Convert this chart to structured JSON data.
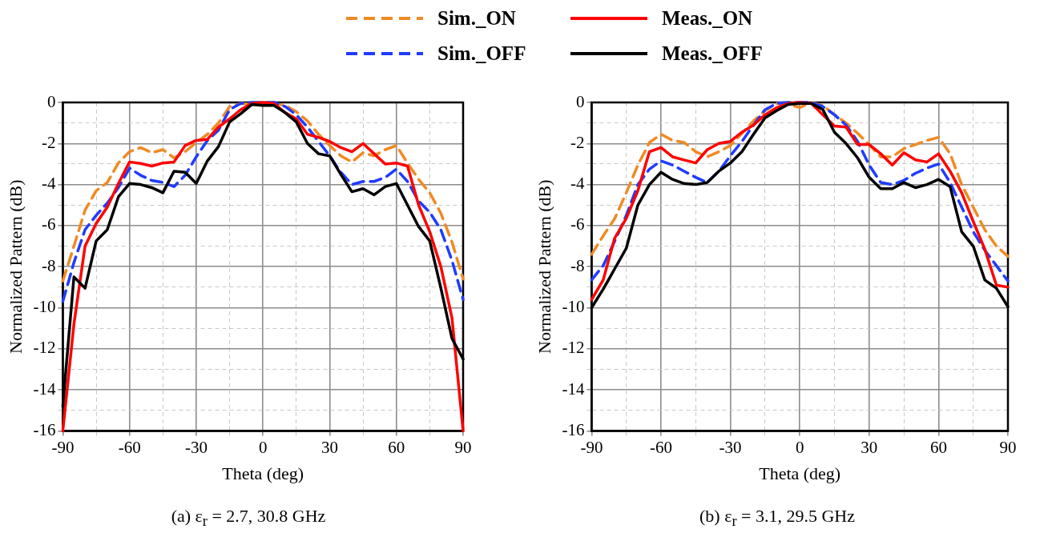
{
  "chart_data": [
    {
      "type": "line",
      "title": "(a) ε$_{r}$ = 2.7, 30.8 GHz",
      "xlabel": "Theta (deg)",
      "ylabel": "Normalized Pattern (dB)",
      "x": [
        -90,
        -85,
        -80,
        -75,
        -70,
        -65,
        -60,
        -55,
        -50,
        -45,
        -40,
        -35,
        -30,
        -25,
        -20,
        -15,
        -10,
        -5,
        0,
        5,
        10,
        15,
        20,
        25,
        30,
        35,
        40,
        45,
        50,
        55,
        60,
        65,
        70,
        75,
        80,
        85,
        90
      ],
      "series": [
        {
          "name": "Sim._ON",
          "color": "#f08a24",
          "line_style": "dashed",
          "values": [
            -8.7,
            -7.0,
            -5.25,
            -4.3,
            -3.9,
            -2.95,
            -2.4,
            -2.2,
            -2.45,
            -2.3,
            -2.7,
            -2.4,
            -1.95,
            -1.55,
            -1.0,
            -0.2,
            -0.05,
            -0.1,
            -0.15,
            -0.05,
            -0.15,
            -0.45,
            -0.9,
            -1.55,
            -2.1,
            -2.6,
            -2.9,
            -2.45,
            -2.6,
            -2.3,
            -2.1,
            -2.95,
            -3.75,
            -4.4,
            -5.4,
            -6.8,
            -8.6
          ]
        },
        {
          "name": "Sim._OFF",
          "color": "#1f3cff",
          "line_style": "dashed",
          "values": [
            -9.7,
            -7.8,
            -6.2,
            -5.5,
            -4.9,
            -4.15,
            -3.2,
            -3.55,
            -3.8,
            -3.9,
            -4.1,
            -3.55,
            -2.65,
            -1.85,
            -1.35,
            -0.35,
            -0.05,
            0,
            0,
            0,
            -0.2,
            -0.6,
            -1.2,
            -1.9,
            -2.6,
            -3.4,
            -4.0,
            -3.85,
            -3.85,
            -3.65,
            -3.25,
            -3.85,
            -4.8,
            -5.35,
            -6.2,
            -7.7,
            -9.6
          ]
        },
        {
          "name": "Meas._ON",
          "color": "#ff0000",
          "line_style": "solid",
          "values": [
            -16,
            -10.8,
            -7.0,
            -5.9,
            -5.1,
            -3.95,
            -2.9,
            -2.97,
            -3.1,
            -2.95,
            -2.9,
            -2.1,
            -1.85,
            -1.8,
            -1.2,
            -0.8,
            -0.35,
            -0.05,
            0,
            -0.05,
            -0.5,
            -0.8,
            -1.55,
            -1.7,
            -1.9,
            -2.2,
            -2.4,
            -2.0,
            -2.5,
            -3.0,
            -2.95,
            -3.1,
            -5.0,
            -6.3,
            -8.0,
            -10.5,
            -16
          ]
        },
        {
          "name": "Meas._OFF",
          "color": "#000000",
          "line_style": "solid",
          "values": [
            -14.8,
            -8.5,
            -9.05,
            -6.75,
            -6.2,
            -4.6,
            -3.95,
            -4.0,
            -4.15,
            -4.4,
            -3.35,
            -3.4,
            -3.95,
            -2.85,
            -2.15,
            -0.95,
            -0.55,
            -0.1,
            -0.15,
            -0.15,
            -0.5,
            -0.95,
            -2.0,
            -2.5,
            -2.6,
            -3.5,
            -4.35,
            -4.2,
            -4.5,
            -4.1,
            -3.95,
            -5.0,
            -6.05,
            -6.75,
            -9.05,
            -11.5,
            -12.5
          ]
        }
      ],
      "xlim": [
        -90,
        90
      ],
      "xticks": [
        -90,
        {
          "value": -75,
          "label": null
        },
        -60,
        {
          "value": -45,
          "label": null
        },
        -30,
        {
          "value": -15,
          "label": null
        },
        0,
        {
          "value": 15,
          "label": null
        },
        30,
        {
          "value": 45,
          "label": null
        },
        60,
        {
          "value": 75,
          "label": null
        },
        90
      ],
      "ylim": [
        -16,
        0
      ],
      "yticks": [
        -16,
        {
          "value": -15,
          "label": null
        },
        -14,
        {
          "value": -13,
          "label": null
        },
        -12,
        {
          "value": -11,
          "label": null
        },
        -10,
        {
          "value": -9,
          "label": null
        },
        -8,
        {
          "value": -7,
          "label": null
        },
        -6,
        {
          "value": -5,
          "label": null
        },
        -4,
        {
          "value": -3,
          "label": null
        },
        -2,
        {
          "value": -1,
          "label": null
        },
        0
      ],
      "grid": true,
      "legend": "top",
      "marker": "none"
    },
    {
      "type": "line",
      "title": "(b) ε$_{r}$ = 3.1, 29.5 GHz",
      "xlabel": "Theta (deg)",
      "ylabel": "Normalized Pattern (dB)",
      "x": [
        -90,
        -85,
        -80,
        -75,
        -70,
        -65,
        -60,
        -55,
        -50,
        -45,
        -40,
        -35,
        -30,
        -25,
        -20,
        -15,
        -10,
        -5,
        0,
        5,
        10,
        15,
        20,
        25,
        30,
        35,
        40,
        45,
        50,
        55,
        60,
        65,
        70,
        75,
        80,
        85,
        90
      ],
      "series": [
        {
          "name": "Sim._ON",
          "color": "#f08a24",
          "line_style": "dashed",
          "values": [
            -7.4,
            -6.5,
            -5.65,
            -4.4,
            -3.05,
            -1.95,
            -1.55,
            -1.85,
            -1.95,
            -2.4,
            -2.65,
            -2.4,
            -2.1,
            -1.5,
            -0.9,
            -0.4,
            -0.05,
            -0.1,
            -0.25,
            0,
            -0.15,
            -0.6,
            -1.0,
            -1.5,
            -2.05,
            -2.65,
            -2.65,
            -2.25,
            -2.05,
            -1.85,
            -1.7,
            -2.5,
            -4.0,
            -5.1,
            -6.2,
            -7.0,
            -7.5
          ]
        },
        {
          "name": "Sim._OFF",
          "color": "#1f3cff",
          "line_style": "dashed",
          "values": [
            -8.65,
            -7.95,
            -6.75,
            -5.5,
            -4.0,
            -3.25,
            -2.85,
            -3.05,
            -3.35,
            -3.65,
            -3.9,
            -3.35,
            -2.6,
            -1.9,
            -1.1,
            -0.35,
            -0.05,
            0,
            0,
            0,
            -0.2,
            -0.6,
            -1.1,
            -1.9,
            -3.05,
            -3.9,
            -4.0,
            -3.8,
            -3.45,
            -3.2,
            -3.0,
            -3.9,
            -5.1,
            -6.3,
            -7.2,
            -7.95,
            -8.7
          ]
        },
        {
          "name": "Meas._ON",
          "color": "#ff0000",
          "line_style": "solid",
          "values": [
            -9.6,
            -8.65,
            -6.6,
            -5.65,
            -4.3,
            -2.4,
            -2.2,
            -2.65,
            -2.8,
            -2.95,
            -2.3,
            -2.0,
            -1.9,
            -1.45,
            -1.1,
            -0.6,
            -0.25,
            -0.05,
            0,
            -0.05,
            -0.6,
            -1.15,
            -1.2,
            -2.05,
            -2.05,
            -2.5,
            -3.05,
            -2.45,
            -2.8,
            -2.9,
            -2.5,
            -3.35,
            -4.4,
            -5.8,
            -7.15,
            -8.9,
            -9.0
          ]
        },
        {
          "name": "Meas._OFF",
          "color": "#000000",
          "line_style": "solid",
          "values": [
            -10,
            -9.1,
            -8.1,
            -7.1,
            -5.0,
            -4.0,
            -3.4,
            -3.75,
            -3.95,
            -4.0,
            -3.9,
            -3.35,
            -2.95,
            -2.4,
            -1.55,
            -0.75,
            -0.4,
            -0.1,
            -0.05,
            -0.05,
            -0.35,
            -1.45,
            -2.0,
            -2.7,
            -3.65,
            -4.2,
            -4.2,
            -3.9,
            -4.15,
            -4.0,
            -3.75,
            -4.1,
            -6.3,
            -7.0,
            -8.65,
            -9.05,
            -9.95
          ]
        }
      ],
      "xlim": [
        -90,
        90
      ],
      "xticks": [
        -90,
        {
          "value": -75,
          "label": null
        },
        -60,
        {
          "value": -45,
          "label": null
        },
        -30,
        {
          "value": -15,
          "label": null
        },
        0,
        {
          "value": 15,
          "label": null
        },
        30,
        {
          "value": 45,
          "label": null
        },
        60,
        {
          "value": 75,
          "label": null
        },
        90
      ],
      "ylim": [
        -16,
        0
      ],
      "yticks": [
        -16,
        {
          "value": -15,
          "label": null
        },
        -14,
        {
          "value": -13,
          "label": null
        },
        -12,
        {
          "value": -11,
          "label": null
        },
        -10,
        {
          "value": -9,
          "label": null
        },
        -8,
        {
          "value": -7,
          "label": null
        },
        -6,
        {
          "value": -5,
          "label": null
        },
        -4,
        {
          "value": -3,
          "label": null
        },
        -2,
        {
          "value": -1,
          "label": null
        },
        0
      ],
      "grid": true,
      "legend": "top",
      "marker": "none"
    }
  ]
}
